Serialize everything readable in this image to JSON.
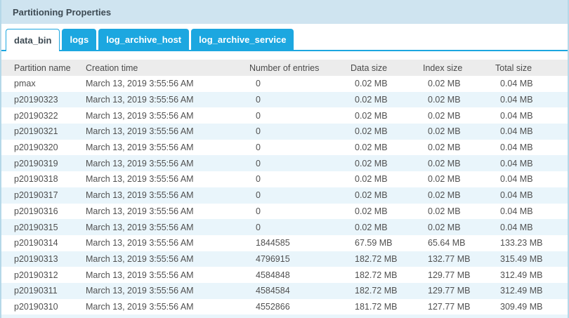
{
  "colors": {
    "accent": "#1ca7e0",
    "titlebar_bg": "#cfe4f0",
    "titlebar_text": "#3d4a53",
    "header_bg": "#ececec",
    "header_text": "#4a4a4a",
    "cell_text": "#505050",
    "alt_row_bg": "#e9f5fb",
    "panel_border": "#b5d8e8"
  },
  "panel": {
    "title": "Partitioning Properties"
  },
  "tabs": [
    {
      "label": "data_bin",
      "active": true
    },
    {
      "label": "logs",
      "active": false
    },
    {
      "label": "log_archive_host",
      "active": false
    },
    {
      "label": "log_archive_service",
      "active": false
    }
  ],
  "table": {
    "columns": [
      "Partition name",
      "Creation time",
      "Number of entries",
      "Data size",
      "Index size",
      "Total size"
    ],
    "rows": [
      [
        "pmax",
        "March 13, 2019 3:55:56 AM",
        "0",
        "0.02 MB",
        "0.02 MB",
        "0.04 MB"
      ],
      [
        "p20190323",
        "March 13, 2019 3:55:56 AM",
        "0",
        "0.02 MB",
        "0.02 MB",
        "0.04 MB"
      ],
      [
        "p20190322",
        "March 13, 2019 3:55:56 AM",
        "0",
        "0.02 MB",
        "0.02 MB",
        "0.04 MB"
      ],
      [
        "p20190321",
        "March 13, 2019 3:55:56 AM",
        "0",
        "0.02 MB",
        "0.02 MB",
        "0.04 MB"
      ],
      [
        "p20190320",
        "March 13, 2019 3:55:56 AM",
        "0",
        "0.02 MB",
        "0.02 MB",
        "0.04 MB"
      ],
      [
        "p20190319",
        "March 13, 2019 3:55:56 AM",
        "0",
        "0.02 MB",
        "0.02 MB",
        "0.04 MB"
      ],
      [
        "p20190318",
        "March 13, 2019 3:55:56 AM",
        "0",
        "0.02 MB",
        "0.02 MB",
        "0.04 MB"
      ],
      [
        "p20190317",
        "March 13, 2019 3:55:56 AM",
        "0",
        "0.02 MB",
        "0.02 MB",
        "0.04 MB"
      ],
      [
        "p20190316",
        "March 13, 2019 3:55:56 AM",
        "0",
        "0.02 MB",
        "0.02 MB",
        "0.04 MB"
      ],
      [
        "p20190315",
        "March 13, 2019 3:55:56 AM",
        "0",
        "0.02 MB",
        "0.02 MB",
        "0.04 MB"
      ],
      [
        "p20190314",
        "March 13, 2019 3:55:56 AM",
        "1844585",
        "67.59 MB",
        "65.64 MB",
        "133.23 MB"
      ],
      [
        "p20190313",
        "March 13, 2019 3:55:56 AM",
        "4796915",
        "182.72 MB",
        "132.77 MB",
        "315.49 MB"
      ],
      [
        "p20190312",
        "March 13, 2019 3:55:56 AM",
        "4584848",
        "182.72 MB",
        "129.77 MB",
        "312.49 MB"
      ],
      [
        "p20190311",
        "March 13, 2019 3:55:56 AM",
        "4584584",
        "182.72 MB",
        "129.77 MB",
        "312.49 MB"
      ],
      [
        "p20190310",
        "March 13, 2019 3:55:56 AM",
        "4552866",
        "181.72 MB",
        "127.77 MB",
        "309.49 MB"
      ]
    ]
  }
}
